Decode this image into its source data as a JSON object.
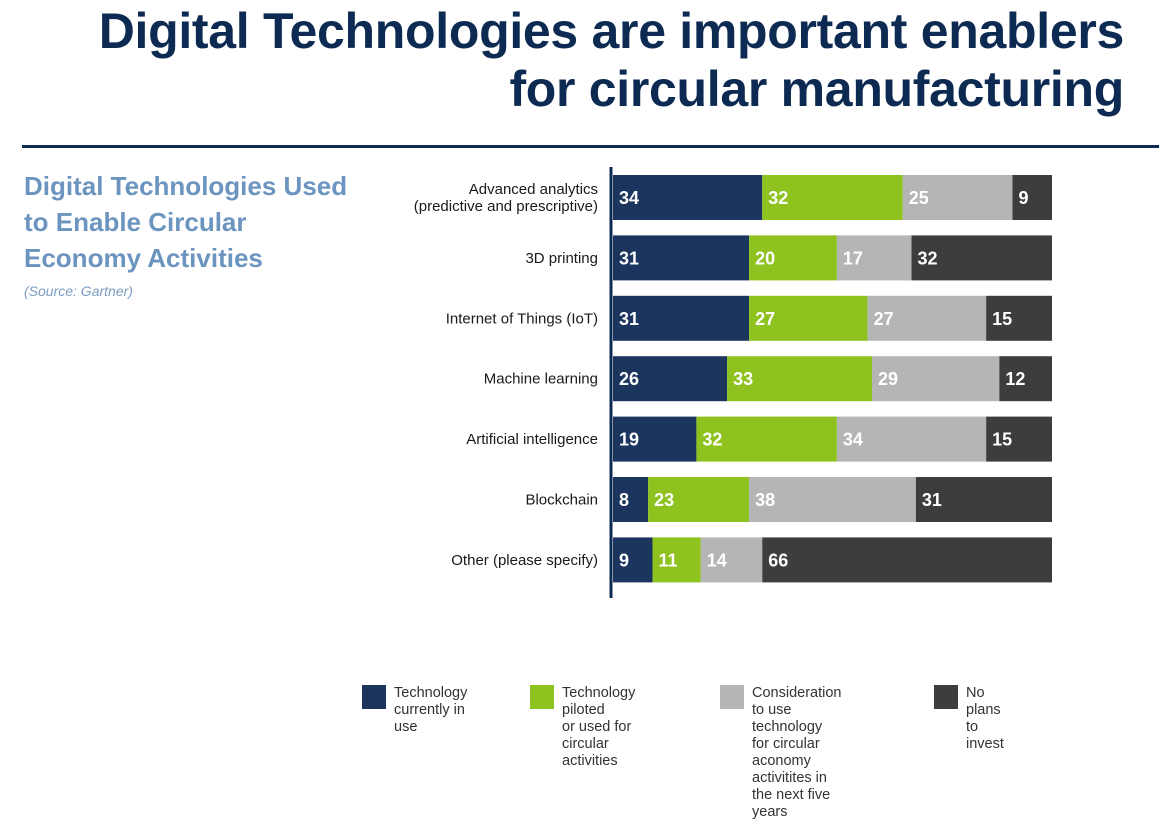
{
  "header": {
    "title_line1": "Digital Technologies are important enablers",
    "title_line2": "for circular manufacturing"
  },
  "panel": {
    "subtitle": "Digital Technologies Used to Enable Circular Economy Activities",
    "source": "(Source: Gartner)"
  },
  "colors": {
    "title": "#0d2b52",
    "subtitle": "#6b95bf",
    "axis": "#0d2b52"
  },
  "chart_data": {
    "type": "bar",
    "orientation": "horizontal",
    "stacked": true,
    "categories": [
      [
        "Advanced analytics",
        "(predictive and prescriptive)"
      ],
      [
        "3D printing"
      ],
      [
        "Internet of Things (IoT)"
      ],
      [
        "Machine learning"
      ],
      [
        "Artificial intelligence"
      ],
      [
        "Blockchain"
      ],
      [
        "Other (please specify)"
      ]
    ],
    "series": [
      {
        "name": "Technology\ncurrently in use",
        "color": "#1b355f",
        "values": [
          34,
          31,
          31,
          26,
          19,
          8,
          9
        ]
      },
      {
        "name": "Technology piloted\nor used for circular\nactivities",
        "color": "#8dc21f",
        "values": [
          32,
          20,
          27,
          33,
          32,
          23,
          11
        ]
      },
      {
        "name": "Consideration to use\ntechnology for circular\naconomy activitites in\nthe next five years",
        "color": "#b5b5b5",
        "values": [
          25,
          17,
          27,
          29,
          34,
          38,
          14
        ]
      },
      {
        "name": "No plans to\ninvest",
        "color": "#3d3d3d",
        "values": [
          9,
          32,
          15,
          12,
          15,
          31,
          66
        ]
      }
    ],
    "xlim": [
      0,
      100
    ],
    "legend_position": "bottom",
    "data_labels": true,
    "grid": false
  }
}
